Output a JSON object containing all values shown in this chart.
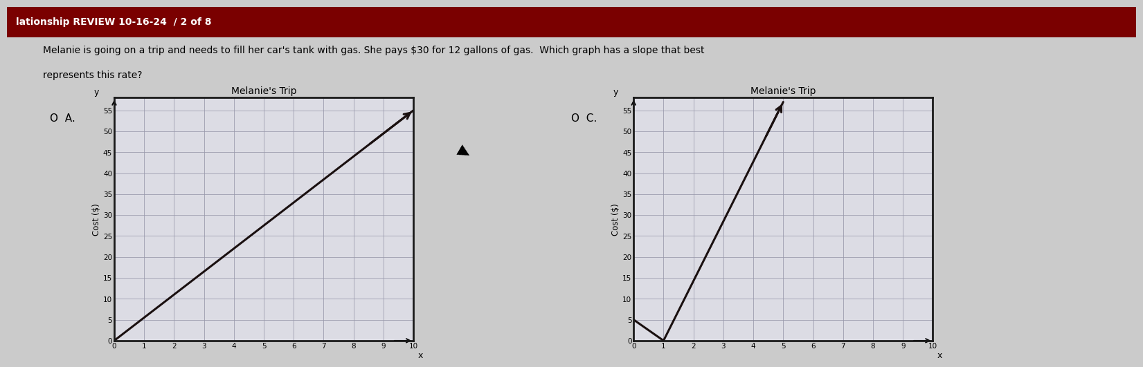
{
  "title_bar": "lationship REVIEW 10-16-24  / 2 of 8",
  "question_line1": "Melanie is going on a trip and needs to fill her car's tank with gas. She pays $30 for 12 gallons of gas.  Which graph has a slope that best",
  "question_line2": "represents this rate?",
  "background_color": "#cbcbcb",
  "graph_background": "#dcdce4",
  "graph_border_color": "#1a1a1a",
  "grid_color": "#9898aa",
  "line_color": "#1a1010",
  "title_bar_color": "#7a0000",
  "title_text_color": "#ffffff",
  "option_A": {
    "label": "A.",
    "graph_title": "Melanie's Trip",
    "ylabel": "Cost ($)",
    "xlim": [
      0,
      10
    ],
    "ylim": [
      0,
      58
    ],
    "yticks": [
      0,
      5,
      10,
      15,
      20,
      25,
      30,
      35,
      40,
      45,
      50,
      55
    ],
    "xticks": [
      0,
      1,
      2,
      3,
      4,
      5,
      6,
      7,
      8,
      9,
      10
    ],
    "line_x": [
      0,
      10
    ],
    "line_y": [
      0,
      55
    ]
  },
  "option_C": {
    "label": "C.",
    "graph_title": "Melanie's Trip",
    "ylabel": "Cost ($)",
    "xlim": [
      0,
      10
    ],
    "ylim": [
      0,
      58
    ],
    "yticks": [
      0,
      5,
      10,
      15,
      20,
      25,
      30,
      35,
      40,
      45,
      50,
      55
    ],
    "xticks": [
      0,
      1,
      2,
      3,
      4,
      5,
      6,
      7,
      8,
      9,
      10
    ],
    "line_x": [
      0,
      1,
      5
    ],
    "line_y": [
      5,
      0,
      57
    ]
  }
}
